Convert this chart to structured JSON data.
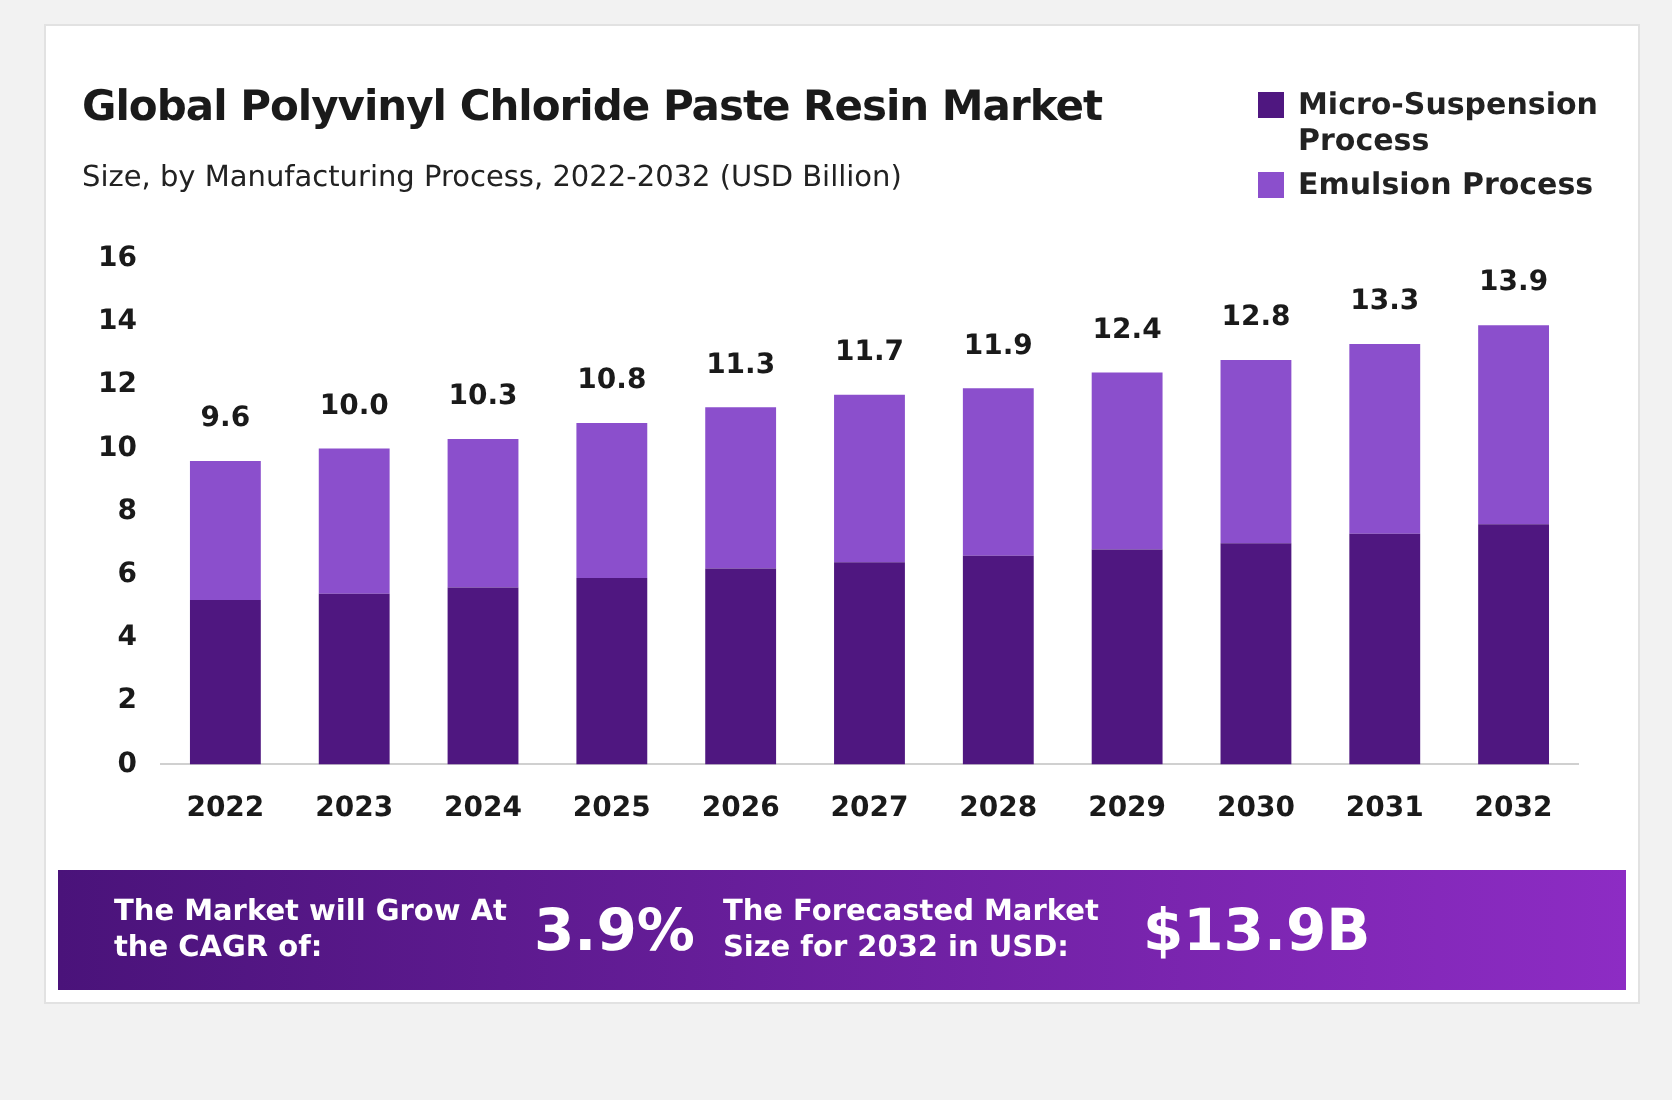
{
  "chart_data": {
    "type": "bar",
    "title": "Global Polyvinyl Chloride Paste Resin Market",
    "subtitle": "Size, by Manufacturing Process, 2022-2032 (USD Billion)",
    "categories": [
      "2022",
      "2023",
      "2024",
      "2025",
      "2026",
      "2027",
      "2028",
      "2029",
      "2030",
      "2031",
      "2032"
    ],
    "series": [
      {
        "name": "Micro-Suspension Process",
        "color": "#4f1780",
        "values": [
          5.2,
          5.4,
          5.6,
          5.9,
          6.2,
          6.4,
          6.6,
          6.8,
          7.0,
          7.3,
          7.6
        ]
      },
      {
        "name": "Emulsion Process",
        "color": "#8b4fcc",
        "values": [
          4.4,
          4.6,
          4.7,
          4.9,
          5.1,
          5.3,
          5.3,
          5.6,
          5.8,
          6.0,
          6.3
        ]
      }
    ],
    "stacked": true,
    "totals": [
      "9.6",
      "10.0",
      "10.3",
      "10.8",
      "11.3",
      "11.7",
      "11.9",
      "12.4",
      "12.8",
      "13.3",
      "13.9"
    ],
    "ylim": [
      0,
      16
    ],
    "yticks": [
      0,
      2,
      4,
      6,
      8,
      10,
      12,
      14,
      16
    ],
    "grid": false,
    "legend": "top right",
    "annotations": [
      "The Market will Grow At the CAGR of:",
      "3.9%",
      "The Forecasted Market Size for 2032 in USD:",
      "$13.9B"
    ]
  }
}
